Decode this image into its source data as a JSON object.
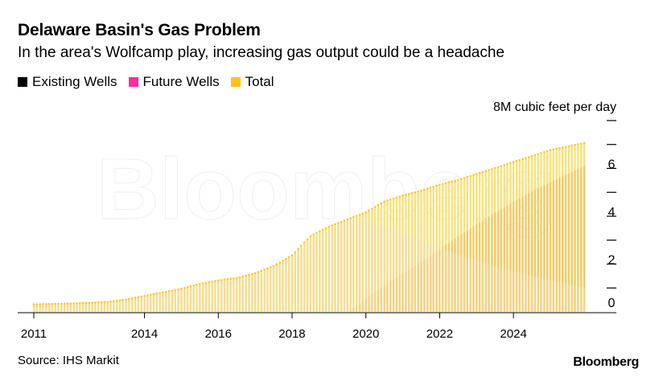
{
  "title": "Delaware Basin's Gas Problem",
  "subtitle": "In the area's Wolfcamp play, increasing gas output could be a headache",
  "source": "Source: IHS Markit",
  "brand": "Bloomberg",
  "watermark": "Bloomberg",
  "colors": {
    "existing": "#000000",
    "future": "#ff2aa0",
    "total": "#ffc21a",
    "total_light": "#f7e27a",
    "future_light": "#f2c25a",
    "existing_light": "#f3d9a0",
    "axis": "#000000"
  },
  "chart_data": {
    "type": "bar",
    "title": "",
    "unit_label": "8M cubic feet per day",
    "legend": [
      "Existing Wells",
      "Future Wells",
      "Total"
    ],
    "legend_position": "top-left",
    "x_ticks": [
      "2011",
      "2014",
      "2016",
      "2018",
      "2020",
      "2022",
      "2024"
    ],
    "y_ticks": [
      "0",
      "2",
      "4",
      "6"
    ],
    "ylim": [
      0,
      8
    ],
    "x_range": [
      "2011-01",
      "2025-12"
    ],
    "series": [
      {
        "name": "Total",
        "points": [
          [
            "2011-01",
            0.35
          ],
          [
            "2012-01",
            0.38
          ],
          [
            "2013-01",
            0.45
          ],
          [
            "2013-07",
            0.55
          ],
          [
            "2014-01",
            0.7
          ],
          [
            "2014-07",
            0.85
          ],
          [
            "2015-01",
            1.0
          ],
          [
            "2015-07",
            1.2
          ],
          [
            "2016-01",
            1.35
          ],
          [
            "2016-07",
            1.45
          ],
          [
            "2017-01",
            1.65
          ],
          [
            "2017-07",
            1.95
          ],
          [
            "2018-01",
            2.4
          ],
          [
            "2018-07",
            3.2
          ],
          [
            "2019-01",
            3.6
          ],
          [
            "2019-07",
            3.9
          ],
          [
            "2020-01",
            4.2
          ],
          [
            "2020-07",
            4.65
          ],
          [
            "2021-01",
            4.9
          ],
          [
            "2021-07",
            5.1
          ],
          [
            "2022-01",
            5.35
          ],
          [
            "2022-07",
            5.55
          ],
          [
            "2023-01",
            5.8
          ],
          [
            "2023-07",
            6.05
          ],
          [
            "2024-01",
            6.3
          ],
          [
            "2024-07",
            6.55
          ],
          [
            "2025-01",
            6.8
          ],
          [
            "2025-12",
            7.1
          ]
        ]
      },
      {
        "name": "Existing Wells",
        "points": [
          [
            "2011-01",
            0.35
          ],
          [
            "2014-01",
            0.7
          ],
          [
            "2016-01",
            1.35
          ],
          [
            "2018-01",
            2.4
          ],
          [
            "2019-07",
            3.9
          ],
          [
            "2020-07",
            3.55
          ],
          [
            "2021-07",
            3.0
          ],
          [
            "2022-07",
            2.4
          ],
          [
            "2023-07",
            1.9
          ],
          [
            "2024-07",
            1.5
          ],
          [
            "2025-12",
            1.0
          ]
        ]
      },
      {
        "name": "Future Wells",
        "points": [
          [
            "2011-01",
            0.0
          ],
          [
            "2019-07",
            0.0
          ],
          [
            "2020-07",
            1.1
          ],
          [
            "2021-07",
            2.1
          ],
          [
            "2022-07",
            3.15
          ],
          [
            "2023-07",
            4.15
          ],
          [
            "2024-07",
            5.05
          ],
          [
            "2025-12",
            6.1
          ]
        ]
      }
    ]
  }
}
